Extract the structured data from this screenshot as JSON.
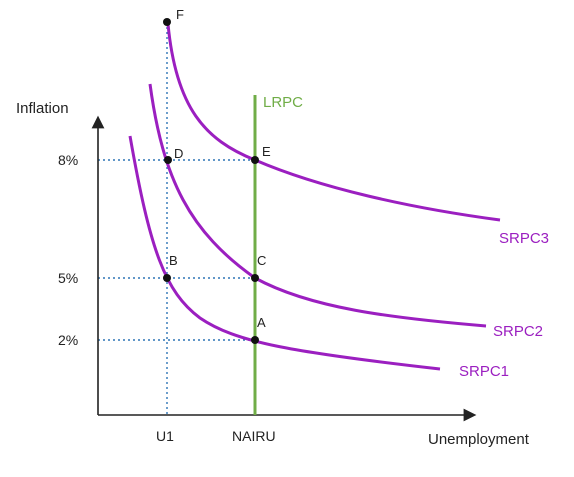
{
  "axes": {
    "y_title": "Inflation",
    "x_title": "Unemployment",
    "y_ticks": [
      "8%",
      "5%",
      "2%"
    ],
    "x_ticks": [
      "U1",
      "NAIRU"
    ]
  },
  "curves": {
    "lrpc": "LRPC",
    "srpc1": "SRPC1",
    "srpc2": "SRPC2",
    "srpc3": "SRPC3"
  },
  "points": {
    "a": "A",
    "b": "B",
    "c": "C",
    "d": "D",
    "e": "E",
    "f": "F"
  },
  "colors": {
    "curve": "#9b1fc0",
    "lrpc": "#70ad47",
    "guide": "#2e75b6",
    "axis": "#222222",
    "dot": "#111111"
  }
}
